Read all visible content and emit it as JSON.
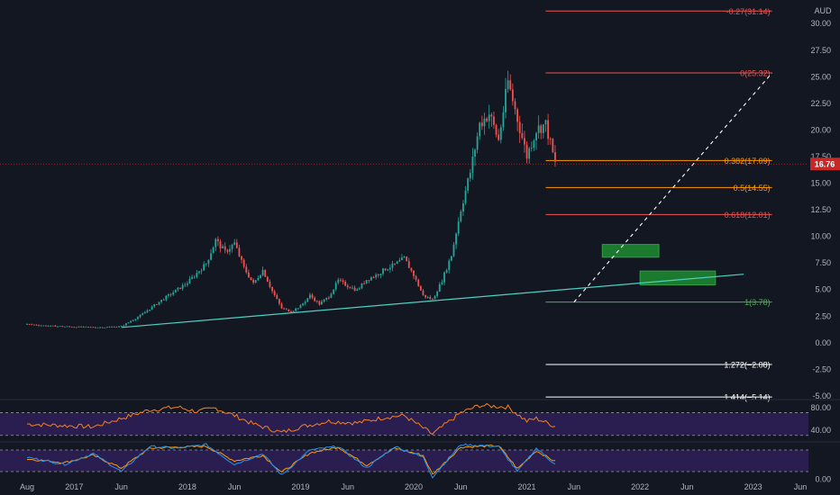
{
  "currency_label": "AUD",
  "colors": {
    "background": "#131722",
    "up": "#26a69a",
    "down": "#ef5350",
    "trendline": "#4dd0c4",
    "panel": "#2a1d50",
    "rsi_line": "#f7821b",
    "stoch_k": "#2196f3",
    "stoch_d": "#ff9800",
    "current_price": "#c62828",
    "green_zone": "#1b7a2e"
  },
  "chart_data": [
    {
      "type": "candlestick",
      "x_axis": {
        "labels": [
          "Aug",
          "2017",
          "Jun",
          "2018",
          "Jun",
          "2019",
          "Jun",
          "2020",
          "Jun",
          "2021",
          "Jun",
          "2022",
          "Jun",
          "2023",
          "Jun"
        ],
        "range": [
          "2016-08",
          "2023-06"
        ]
      },
      "y_axis": {
        "ticks": [
          "-5.00",
          "-2.50",
          "0.00",
          "2.50",
          "5.00",
          "7.50",
          "10.00",
          "12.50",
          "15.00",
          "17.50",
          "20.00",
          "22.50",
          "25.00",
          "27.50",
          "30.00"
        ],
        "range": [
          -5.3,
          31.5
        ],
        "side": "right"
      },
      "current_price": {
        "value": 16.76,
        "label": "16.76"
      },
      "price_path": [
        [
          "2016-08",
          1.7
        ],
        [
          "2016-10",
          1.55
        ],
        [
          "2017-01",
          1.45
        ],
        [
          "2017-04",
          1.4
        ],
        [
          "2017-06",
          1.5
        ],
        [
          "2017-08",
          2.5
        ],
        [
          "2017-10",
          3.8
        ],
        [
          "2017-12",
          5.0
        ],
        [
          "2018-01",
          5.6
        ],
        [
          "2018-03",
          7.4
        ],
        [
          "2018-04",
          9.6
        ],
        [
          "2018-05",
          8.5
        ],
        [
          "2018-06",
          9.3
        ],
        [
          "2018-07",
          7.0
        ],
        [
          "2018-08",
          5.5
        ],
        [
          "2018-09",
          6.8
        ],
        [
          "2018-10",
          4.8
        ],
        [
          "2018-11",
          3.2
        ],
        [
          "2018-12",
          2.9
        ],
        [
          "2019-01",
          3.4
        ],
        [
          "2019-02",
          4.4
        ],
        [
          "2019-03",
          3.6
        ],
        [
          "2019-04",
          4.3
        ],
        [
          "2019-05",
          5.8
        ],
        [
          "2019-06",
          5.3
        ],
        [
          "2019-07",
          4.9
        ],
        [
          "2019-08",
          5.9
        ],
        [
          "2019-09",
          6.3
        ],
        [
          "2019-10",
          6.9
        ],
        [
          "2019-11",
          7.3
        ],
        [
          "2019-12",
          7.9
        ],
        [
          "2020-01",
          6.3
        ],
        [
          "2020-02",
          4.4
        ],
        [
          "2020-03",
          4.0
        ],
        [
          "2020-04",
          5.8
        ],
        [
          "2020-05",
          8.2
        ],
        [
          "2020-06",
          12.5
        ],
        [
          "2020-07",
          16.0
        ],
        [
          "2020-08",
          20.5
        ],
        [
          "2020-09",
          21.5
        ],
        [
          "2020-10",
          19.0
        ],
        [
          "2020-11",
          24.5
        ],
        [
          "2020-12",
          21.0
        ],
        [
          "2021-01",
          17.5
        ],
        [
          "2021-02",
          20.0
        ],
        [
          "2021-03",
          20.5
        ],
        [
          "2021-04",
          16.8
        ]
      ],
      "trendline": {
        "points": [
          [
            "2017-06",
            1.4
          ],
          [
            "2022-12",
            6.4
          ]
        ]
      },
      "projection_line": {
        "style": "dashed",
        "points": [
          [
            "2021-06",
            3.78
          ],
          [
            "2023-03",
            25.32
          ]
        ]
      },
      "fib_levels": [
        {
          "label": "-0.27(31.14)",
          "value": 31.14,
          "color": "#ef5350"
        },
        {
          "label": "0(25.32)",
          "value": 25.32,
          "color": "#ef5350"
        },
        {
          "label": "0.382(17.09)",
          "value": 17.09,
          "color": "#ff9800"
        },
        {
          "label": "0.5(14.55)",
          "value": 14.55,
          "color": "#ff9800"
        },
        {
          "label": "0.618(12.01)",
          "value": 12.01,
          "color": "#ef5350"
        },
        {
          "label": "1(3.78)",
          "value": 3.78,
          "color": "#4caf50"
        },
        {
          "label": "1.272(−2.08)",
          "value": -2.08,
          "color": "#ffffff"
        },
        {
          "label": "1.414(−5.14)",
          "value": -5.14,
          "color": "#ffffff"
        }
      ],
      "zones": [
        {
          "from": "2021-09",
          "to": "2022-03",
          "low": 8.0,
          "high": 9.2
        },
        {
          "from": "2022-01",
          "to": "2022-09",
          "low": 5.4,
          "high": 6.7
        }
      ]
    },
    {
      "type": "line",
      "indicator": "RSI",
      "y_axis": {
        "ticks": [
          "80.00",
          "40.00"
        ],
        "range": [
          20,
          90
        ],
        "bands": [
          70,
          30
        ]
      },
      "series": [
        {
          "values": [
            [
              "2016-08",
              50
            ],
            [
              "2017-03",
              45
            ],
            [
              "2017-06",
              60
            ],
            [
              "2017-09",
              75
            ],
            [
              "2017-12",
              80
            ],
            [
              "2018-02",
              72
            ],
            [
              "2018-04",
              78
            ],
            [
              "2018-06",
              65
            ],
            [
              "2018-08",
              50
            ],
            [
              "2018-11",
              35
            ],
            [
              "2019-01",
              45
            ],
            [
              "2019-04",
              55
            ],
            [
              "2019-07",
              52
            ],
            [
              "2019-10",
              62
            ],
            [
              "2019-12",
              65
            ],
            [
              "2020-03",
              32
            ],
            [
              "2020-06",
              70
            ],
            [
              "2020-08",
              83
            ],
            [
              "2020-11",
              80
            ],
            [
              "2021-01",
              55
            ],
            [
              "2021-02",
              60
            ],
            [
              "2021-04",
              46
            ]
          ]
        }
      ]
    },
    {
      "type": "line",
      "indicator": "Stoch RSI",
      "y_axis": {
        "ticks": [
          "0.00"
        ],
        "range": [
          0,
          100
        ],
        "bands": [
          80,
          20
        ]
      },
      "series": [
        {
          "values": [
            [
              "2016-08",
              60
            ],
            [
              "2016-12",
              40
            ],
            [
              "2017-03",
              70
            ],
            [
              "2017-06",
              20
            ],
            [
              "2017-09",
              90
            ],
            [
              "2017-12",
              85
            ],
            [
              "2018-03",
              95
            ],
            [
              "2018-06",
              40
            ],
            [
              "2018-09",
              70
            ],
            [
              "2018-11",
              10
            ],
            [
              "2019-02",
              80
            ],
            [
              "2019-05",
              90
            ],
            [
              "2019-08",
              30
            ],
            [
              "2019-11",
              90
            ],
            [
              "2020-02",
              60
            ],
            [
              "2020-03",
              5
            ],
            [
              "2020-06",
              95
            ],
            [
              "2020-10",
              90
            ],
            [
              "2020-12",
              20
            ],
            [
              "2021-02",
              85
            ],
            [
              "2021-04",
              40
            ]
          ]
        },
        {
          "values": [
            [
              "2016-08",
              55
            ],
            [
              "2016-12",
              45
            ],
            [
              "2017-03",
              65
            ],
            [
              "2017-06",
              30
            ],
            [
              "2017-09",
              85
            ],
            [
              "2017-12",
              88
            ],
            [
              "2018-03",
              90
            ],
            [
              "2018-06",
              50
            ],
            [
              "2018-09",
              65
            ],
            [
              "2018-11",
              18
            ],
            [
              "2019-02",
              72
            ],
            [
              "2019-05",
              88
            ],
            [
              "2019-08",
              38
            ],
            [
              "2019-11",
              85
            ],
            [
              "2020-02",
              65
            ],
            [
              "2020-03",
              12
            ],
            [
              "2020-06",
              88
            ],
            [
              "2020-10",
              92
            ],
            [
              "2020-12",
              28
            ],
            [
              "2021-02",
              78
            ],
            [
              "2021-04",
              48
            ]
          ]
        }
      ]
    }
  ]
}
